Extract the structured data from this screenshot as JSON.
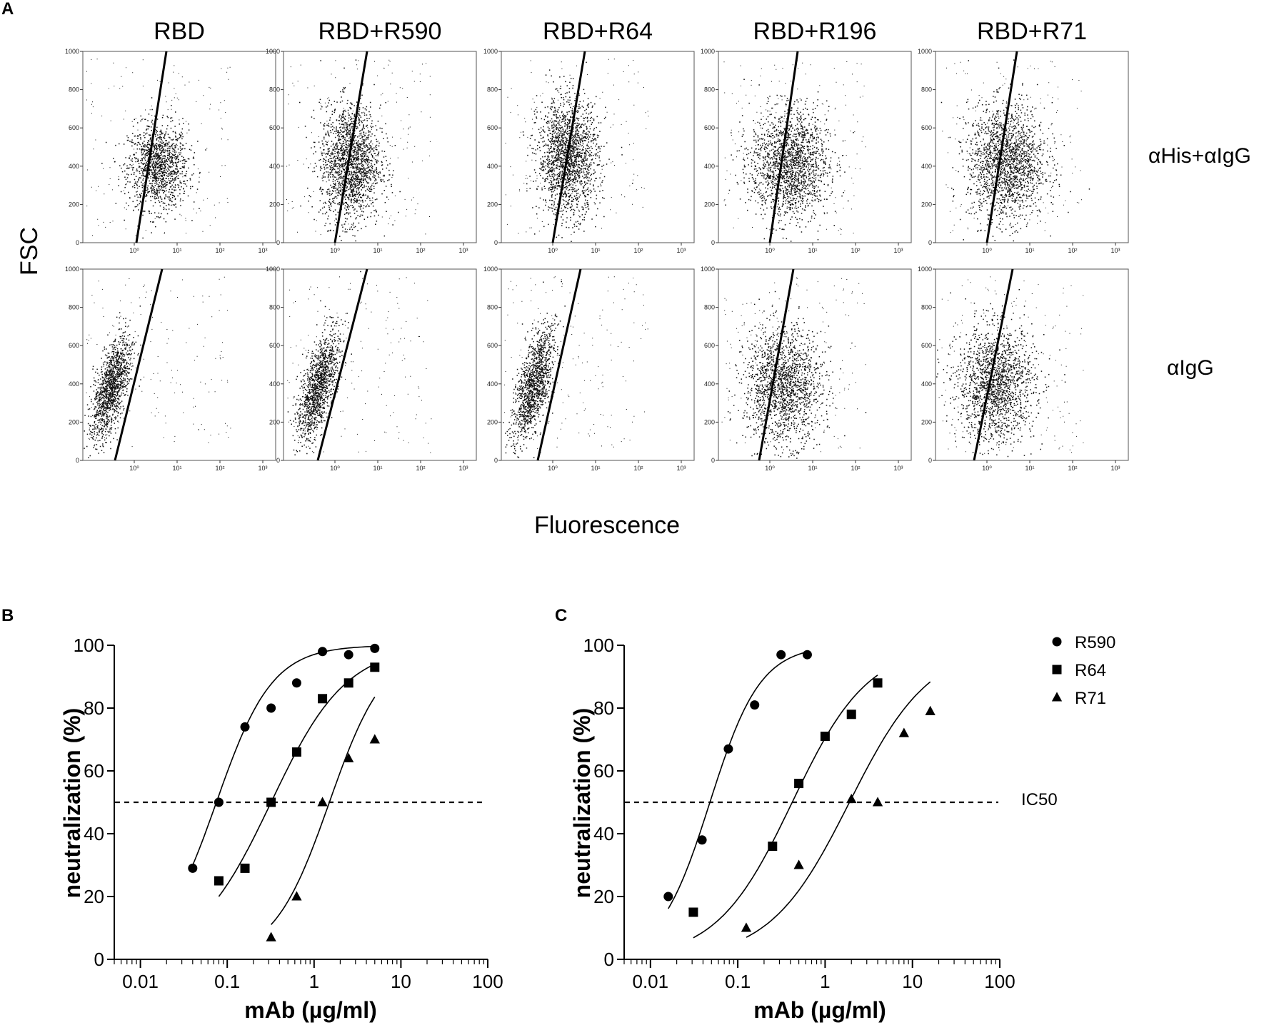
{
  "chart_data": [
    {
      "panel": "A",
      "type": "scatter",
      "panel_label": "A",
      "column_titles": [
        "RBD",
        "RBD+R590",
        "RBD+R64",
        "RBD+R196",
        "RBD+R71"
      ],
      "row_labels": [
        "αHis+αIgG",
        "αIgG"
      ],
      "ylabel": "FSC",
      "xlabel": "Fluorescence",
      "y_ticks": [
        "0",
        "200",
        "400",
        "600",
        "800",
        "1000"
      ],
      "x_ticks": [
        "10⁰",
        "10¹",
        "10²",
        "10³"
      ],
      "ylim": [
        0,
        1000
      ],
      "xlim_log10": [
        -1.2,
        3.3
      ],
      "cell_clouds": [
        [
          {
            "x_log": 0.55,
            "y": 400,
            "sx": 0.35,
            "sy": 110,
            "n": 1300,
            "gate": [
              0.05,
              0.75
            ]
          },
          {
            "x_log": 0.35,
            "y": 420,
            "sx": 0.35,
            "sy": 150,
            "n": 1800,
            "gate": [
              0.0,
              0.75
            ]
          },
          {
            "x_log": 0.35,
            "y": 450,
            "sx": 0.35,
            "sy": 150,
            "n": 1800,
            "gate": [
              0.0,
              0.75
            ]
          },
          {
            "x_log": 0.45,
            "y": 410,
            "sx": 0.45,
            "sy": 140,
            "n": 1800,
            "gate": [
              0.0,
              0.65
            ]
          },
          {
            "x_log": 0.45,
            "y": 420,
            "sx": 0.45,
            "sy": 150,
            "n": 1800,
            "gate": [
              0.0,
              0.7
            ]
          }
        ],
        [
          {
            "x_log": -0.55,
            "y": 380,
            "sx": 0.18,
            "sy": 130,
            "n": 1300,
            "gate": [
              -0.45,
              0.65
            ]
          },
          {
            "x_log": -0.4,
            "y": 390,
            "sx": 0.18,
            "sy": 140,
            "n": 1300,
            "gate": [
              -0.4,
              0.75
            ]
          },
          {
            "x_log": -0.45,
            "y": 400,
            "sx": 0.18,
            "sy": 150,
            "n": 1300,
            "gate": [
              -0.35,
              0.65
            ]
          },
          {
            "x_log": 0.3,
            "y": 390,
            "sx": 0.45,
            "sy": 150,
            "n": 1700,
            "gate": [
              -0.25,
              0.55
            ]
          },
          {
            "x_log": 0.2,
            "y": 400,
            "sx": 0.45,
            "sy": 150,
            "n": 1700,
            "gate": [
              -0.3,
              0.6
            ]
          }
        ]
      ]
    },
    {
      "panel": "B",
      "type": "scatter",
      "panel_label": "B",
      "ylabel": "neutralization (%)",
      "xlabel": "mAb (µg/ml)",
      "xscale": "log",
      "xlim": [
        0.005,
        100
      ],
      "ylim": [
        0,
        100
      ],
      "x_ticks": [
        0.01,
        0.1,
        1,
        10,
        100
      ],
      "x_tick_labels": [
        "0.01",
        "0.1",
        "1",
        "10",
        "100"
      ],
      "y_ticks": [
        0,
        20,
        40,
        60,
        80,
        100
      ],
      "y_tick_labels": [
        "0",
        "20",
        "40",
        "60",
        "80",
        "100"
      ],
      "reference_line": {
        "y": 50,
        "style": "dashed"
      },
      "series": [
        {
          "name": "R590",
          "marker": "circle",
          "x": [
            0.04,
            0.08,
            0.16,
            0.32,
            0.63,
            1.25,
            2.5,
            5.0
          ],
          "y": [
            29,
            50,
            74,
            80,
            88,
            98,
            97,
            99
          ],
          "fit": {
            "ic50": 0.075,
            "hill": 1.35,
            "x_range": [
              0.04,
              5.0
            ]
          }
        },
        {
          "name": "R64",
          "marker": "square",
          "x": [
            0.08,
            0.16,
            0.32,
            0.63,
            1.25,
            2.5,
            5.0
          ],
          "y": [
            25,
            29,
            50,
            66,
            83,
            88,
            93
          ],
          "fit": {
            "ic50": 0.32,
            "hill": 1.0,
            "x_range": [
              0.08,
              5.0
            ]
          }
        },
        {
          "name": "R71",
          "marker": "triangle",
          "x": [
            0.32,
            0.63,
            1.25,
            2.5,
            5.0
          ],
          "y": [
            7,
            20,
            50,
            64,
            70
          ],
          "fit": {
            "ic50": 1.5,
            "hill": 1.35,
            "x_range": [
              0.32,
              5.0
            ]
          }
        }
      ]
    },
    {
      "panel": "C",
      "type": "scatter",
      "panel_label": "C",
      "ylabel": "neutralization (%)",
      "xlabel": "mAb (µg/ml)",
      "xscale": "log",
      "xlim": [
        0.005,
        100
      ],
      "ylim": [
        0,
        100
      ],
      "x_ticks": [
        0.01,
        0.1,
        1,
        10,
        100
      ],
      "x_tick_labels": [
        "0.01",
        "0.1",
        "1",
        "10",
        "100"
      ],
      "y_ticks": [
        0,
        20,
        40,
        60,
        80,
        100
      ],
      "y_tick_labels": [
        "0",
        "20",
        "40",
        "60",
        "80",
        "100"
      ],
      "reference_line": {
        "y": 50,
        "style": "dashed",
        "label": "IC50"
      },
      "legend": {
        "position": "top-right",
        "entries": [
          "R590",
          "R64",
          "R71"
        ]
      },
      "series": [
        {
          "name": "R590",
          "marker": "circle",
          "x": [
            0.016,
            0.039,
            0.078,
            0.156,
            0.313,
            0.625
          ],
          "y": [
            20,
            38,
            67,
            81,
            97,
            97
          ],
          "fit": {
            "ic50": 0.048,
            "hill": 1.5,
            "x_range": [
              0.016,
              0.625
            ]
          }
        },
        {
          "name": "R64",
          "marker": "square",
          "x": [
            0.031,
            0.25,
            0.5,
            1.0,
            2.0,
            4.0
          ],
          "y": [
            15,
            36,
            56,
            71,
            78,
            88
          ],
          "fit": {
            "ic50": 0.42,
            "hill": 1.0,
            "x_range": [
              0.031,
              4.0
            ]
          }
        },
        {
          "name": "R71",
          "marker": "triangle",
          "x": [
            0.125,
            0.5,
            2.0,
            4.0,
            8.0,
            16.0
          ],
          "y": [
            10,
            30,
            51,
            50,
            72,
            79
          ],
          "fit": {
            "ic50": 1.9,
            "hill": 0.95,
            "x_range": [
              0.125,
              16.0
            ]
          }
        }
      ]
    }
  ]
}
